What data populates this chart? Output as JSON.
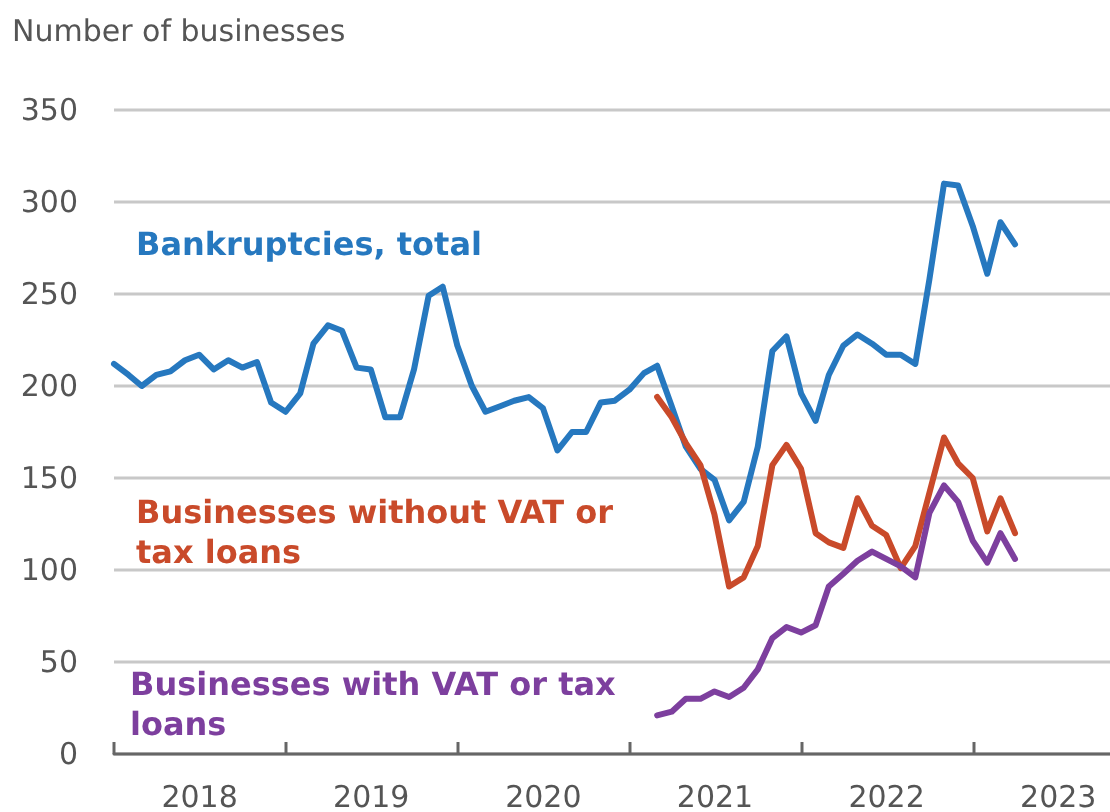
{
  "chart_data": {
    "type": "line",
    "ylabel": "Number of businesses",
    "xlim": [
      "2018-01-01",
      "2023-10-20"
    ],
    "ylim": [
      0,
      350
    ],
    "yticks": [
      0,
      50,
      100,
      150,
      200,
      250,
      300,
      350
    ],
    "xticks": [
      {
        "value": "2018-01-01",
        "label": null
      },
      {
        "value": "2018-07-02",
        "label": "2018"
      },
      {
        "value": "2019-01-01",
        "label": null
      },
      {
        "value": "2019-07-02",
        "label": "2019"
      },
      {
        "value": "2020-01-01",
        "label": null
      },
      {
        "value": "2020-07-02",
        "label": "2020"
      },
      {
        "value": "2021-01-01",
        "label": null
      },
      {
        "value": "2021-07-02",
        "label": "2021"
      },
      {
        "value": "2022-01-01",
        "label": null
      },
      {
        "value": "2022-07-02",
        "label": "2022"
      },
      {
        "value": "2023-01-01",
        "label": null
      },
      {
        "value": "2023-07-02",
        "label": "2023"
      }
    ],
    "grid": "y",
    "legend": false,
    "marker": "none",
    "line_style": "solid",
    "series": [
      {
        "name": "Bankruptcies, total",
        "color": "#2678bf",
        "x": [
          "2018-01",
          "2018-02",
          "2018-03",
          "2018-04",
          "2018-05",
          "2018-06",
          "2018-07",
          "2018-08",
          "2018-09",
          "2018-10",
          "2018-11",
          "2018-12",
          "2019-01",
          "2019-02",
          "2019-03",
          "2019-04",
          "2019-05",
          "2019-06",
          "2019-07",
          "2019-08",
          "2019-09",
          "2019-10",
          "2019-11",
          "2019-12",
          "2020-01",
          "2020-02",
          "2020-03",
          "2020-04",
          "2020-05",
          "2020-06",
          "2020-07",
          "2020-08",
          "2020-09",
          "2020-10",
          "2020-11",
          "2020-12",
          "2021-01",
          "2021-02",
          "2021-03",
          "2021-04",
          "2021-05",
          "2021-06",
          "2021-07",
          "2021-08",
          "2021-09",
          "2021-10",
          "2021-11",
          "2021-12",
          "2022-01",
          "2022-02",
          "2022-03",
          "2022-04",
          "2022-05",
          "2022-06",
          "2022-07",
          "2022-08",
          "2022-09",
          "2022-10",
          "2022-11",
          "2022-12",
          "2023-01",
          "2023-02",
          "2023-03",
          "2023-04"
        ],
        "values": [
          212,
          206,
          200,
          206,
          208,
          214,
          217,
          209,
          214,
          210,
          213,
          191,
          186,
          196,
          223,
          233,
          230,
          210,
          209,
          183,
          183,
          209,
          249,
          254,
          222,
          200,
          186,
          189,
          192,
          194,
          188,
          165,
          175,
          175,
          191,
          192,
          198,
          207,
          211,
          189,
          167,
          155,
          149,
          127,
          137,
          167,
          219,
          227,
          196,
          181,
          206,
          222,
          228,
          223,
          217,
          217,
          212,
          258,
          310,
          309,
          287,
          261,
          289,
          277
        ]
      },
      {
        "name": "Businesses without VAT or tax loans",
        "color": "#c94a2a",
        "x": [
          "2021-03",
          "2021-04",
          "2021-05",
          "2021-06",
          "2021-07",
          "2021-08",
          "2021-09",
          "2021-10",
          "2021-11",
          "2021-12",
          "2022-01",
          "2022-02",
          "2022-03",
          "2022-04",
          "2022-05",
          "2022-06",
          "2022-07",
          "2022-08",
          "2022-09",
          "2022-10",
          "2022-11",
          "2022-12",
          "2023-01",
          "2023-02",
          "2023-03",
          "2023-04"
        ],
        "values": [
          194,
          183,
          169,
          157,
          130,
          91,
          96,
          113,
          157,
          168,
          155,
          120,
          115,
          112,
          139,
          124,
          119,
          101,
          113,
          142,
          172,
          158,
          150,
          121,
          139,
          120
        ]
      },
      {
        "name": "Businesses with VAT or tax loans",
        "color": "#7d3f9e",
        "x": [
          "2021-03",
          "2021-04",
          "2021-05",
          "2021-06",
          "2021-07",
          "2021-08",
          "2021-09",
          "2021-10",
          "2021-11",
          "2021-12",
          "2022-01",
          "2022-02",
          "2022-03",
          "2022-04",
          "2022-05",
          "2022-06",
          "2022-07",
          "2022-08",
          "2022-09",
          "2022-10",
          "2022-11",
          "2022-12",
          "2023-01",
          "2023-02",
          "2023-03",
          "2023-04"
        ],
        "values": [
          21,
          23,
          30,
          30,
          34,
          31,
          36,
          46,
          63,
          69,
          66,
          70,
          91,
          98,
          105,
          110,
          106,
          102,
          96,
          131,
          146,
          137,
          116,
          104,
          120,
          106
        ]
      }
    ]
  }
}
